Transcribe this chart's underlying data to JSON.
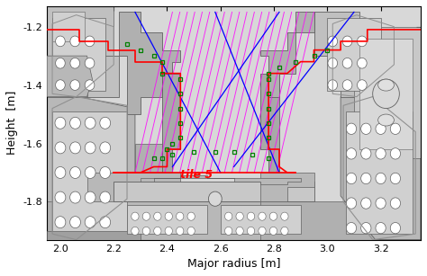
{
  "xlim": [
    1.95,
    3.35
  ],
  "ylim": [
    -1.93,
    -1.13
  ],
  "xlabel": "Major radius [m]",
  "ylabel": "Height  [m]",
  "xticks": [
    2.0,
    2.2,
    2.4,
    2.6,
    2.8,
    3.0,
    3.2
  ],
  "yticks": [
    -1.8,
    -1.6,
    -1.4,
    -1.2
  ],
  "tile5_label": "tile 5",
  "tile5_x": 2.45,
  "tile5_y": -1.72,
  "figsize": [
    4.74,
    3.07
  ],
  "dpi": 100,
  "bg": "#e8e8e8",
  "dgray": "#606060",
  "mgray": "#909090",
  "lgray": "#c0c0c0",
  "vlgray": "#d8d8d8"
}
